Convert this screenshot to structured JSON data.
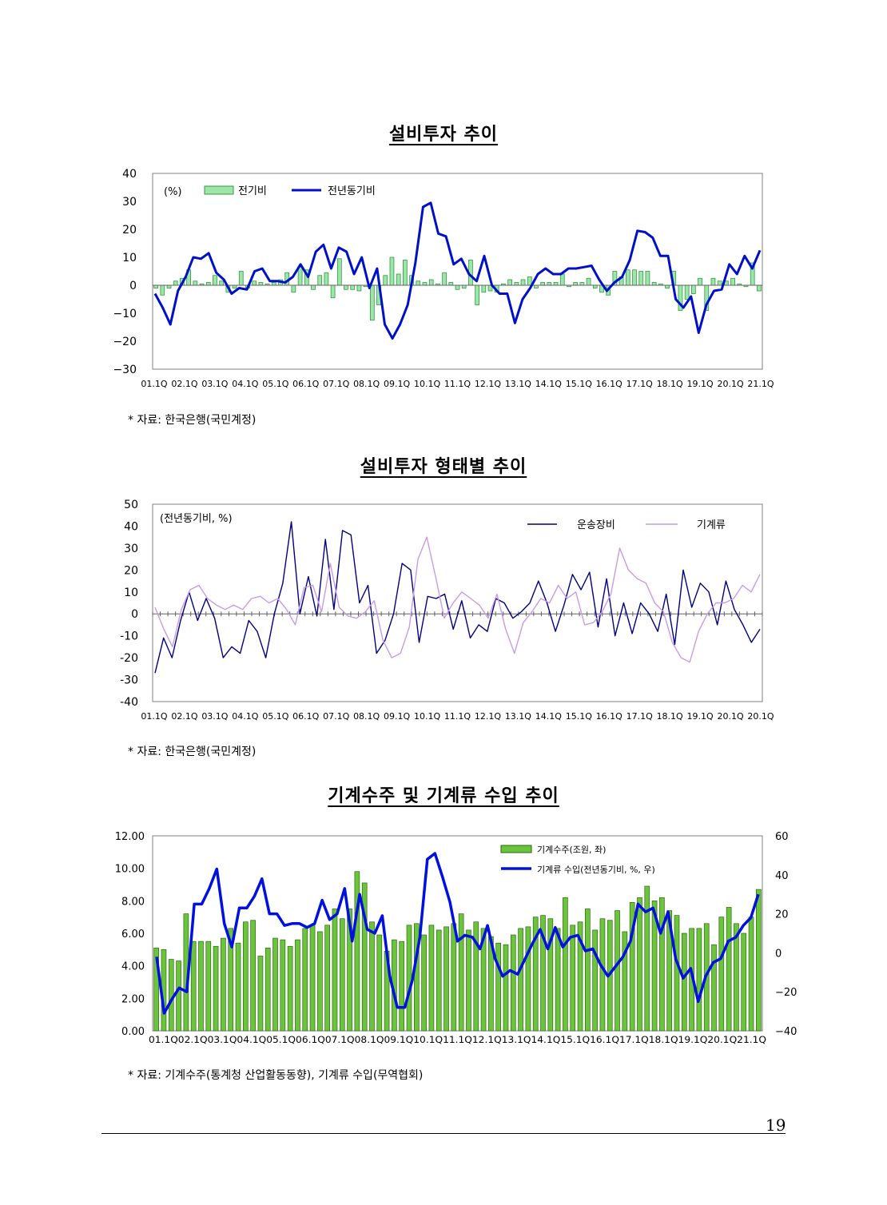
{
  "page_number": "19",
  "chart_data": [
    {
      "type": "bar+line",
      "title": "설비투자 추이",
      "unit_label": "(%)",
      "source": "* 자료: 한국은행(국민계정)",
      "ylim": [
        -30,
        40
      ],
      "yticks": [
        "40",
        "30",
        "20",
        "10",
        "0",
        "−10",
        "−20",
        "−30"
      ],
      "x_tick_labels": [
        "01.1Q",
        "02.1Q",
        "03.1Q",
        "04.1Q",
        "05.1Q",
        "06.1Q",
        "07.1Q",
        "08.1Q",
        "09.1Q",
        "10.1Q",
        "11.1Q",
        "12.1Q",
        "13.1Q",
        "14.1Q",
        "15.1Q",
        "16.1Q",
        "17.1Q",
        "18.1Q",
        "19.1Q",
        "20.1Q",
        "21.1Q"
      ],
      "grid": false,
      "legend": "top-left",
      "series": [
        {
          "name": "전기비",
          "kind": "bar",
          "color": "#9ee6a8",
          "stroke": "#2f9a45",
          "values": [
            -1,
            -3.5,
            -1,
            1.5,
            2.5,
            5.5,
            1.5,
            0.5,
            1,
            3.5,
            1.5,
            -2.5,
            -1,
            5,
            -1,
            1.5,
            1,
            0.5,
            1,
            2,
            4.5,
            -2.5,
            6.5,
            5.5,
            -1.5,
            3.5,
            4.5,
            -4.5,
            9.5,
            -1.5,
            -1.5,
            -2,
            -0.5,
            -12.5,
            -7,
            3.5,
            10,
            4,
            9,
            3.5,
            1.5,
            1,
            2,
            0.5,
            4.5,
            1,
            -1.5,
            -1,
            9,
            -7,
            -2.5,
            -2,
            -2.5,
            0.5,
            2,
            1,
            2,
            3,
            -1,
            1,
            1,
            1,
            4,
            -0.5,
            1,
            1,
            2.5,
            -1,
            -2.5,
            -3.5,
            5,
            3,
            5.5,
            5.5,
            5,
            5,
            1,
            0.5,
            -1,
            5,
            -9,
            -5,
            -3,
            2.5,
            -9,
            2.5,
            1.5,
            1.5,
            2.5,
            0.5,
            -0.5,
            8,
            -2
          ]
        },
        {
          "name": "전년동기비",
          "kind": "line",
          "color": "#0010c8",
          "values": [
            -3,
            -8,
            -14,
            -2,
            3,
            10,
            9.5,
            11.5,
            4.5,
            2,
            -3,
            -1,
            -1.5,
            5,
            6,
            1.5,
            1.5,
            1,
            3,
            7.5,
            3,
            12,
            14.5,
            6,
            13.5,
            12,
            4,
            10,
            -1,
            6,
            -14,
            -19,
            -14,
            -7,
            8,
            28,
            29.5,
            18.5,
            17.5,
            7.5,
            9.5,
            4,
            1.5,
            10.5,
            0,
            -3,
            -3,
            -13.5,
            -5,
            -1,
            4,
            6,
            4,
            4,
            6,
            6,
            6.5,
            7,
            2,
            -2,
            1,
            3,
            9,
            19.5,
            19,
            17,
            10.5,
            10.5,
            -5,
            -8,
            -4,
            -17,
            -7,
            -2,
            -1.5,
            7.5,
            4,
            10.5,
            6,
            12.5
          ]
        }
      ]
    },
    {
      "type": "line",
      "title": "설비투자 형태별 추이",
      "unit_label": "(전년동기비, %)",
      "source": "* 자료: 한국은행(국민계정)",
      "ylim": [
        -40,
        50
      ],
      "yticks": [
        "50",
        "40",
        "30",
        "20",
        "10",
        "0",
        "-10",
        "-20",
        "-30",
        "-40"
      ],
      "x_tick_labels": [
        "01.1Q",
        "02.1Q",
        "03.1Q",
        "04.1Q",
        "05.1Q",
        "06.1Q",
        "07.1Q",
        "08.1Q",
        "09.1Q",
        "10.1Q",
        "11.1Q",
        "12.1Q",
        "13.1Q",
        "14.1Q",
        "15.1Q",
        "16.1Q",
        "17.1Q",
        "18.1Q",
        "19.1Q",
        "20.1Q",
        "20.1Q"
      ],
      "grid": false,
      "legend": "top-right",
      "series": [
        {
          "name": "운송장비",
          "color": "#000080",
          "values": [
            -27,
            -11,
            -20,
            -3,
            10,
            -3,
            7,
            -2,
            -20,
            -15,
            -18,
            -3,
            -8,
            -20,
            0,
            14,
            42,
            0,
            17,
            -1,
            34,
            2,
            38,
            36,
            5,
            13,
            -18,
            -12,
            0,
            23,
            20,
            -13,
            8,
            7,
            9,
            -7,
            6,
            -11,
            -5,
            -8,
            7,
            5,
            -2,
            1,
            5,
            15,
            5,
            -8,
            4,
            18,
            11,
            19,
            -6,
            16,
            -10,
            5,
            -9,
            5,
            0,
            -8,
            9,
            -14,
            20,
            3,
            14,
            10,
            -5,
            15,
            2,
            -5,
            -13,
            -7
          ]
        },
        {
          "name": "기계류",
          "color": "#c89be6",
          "values": [
            3,
            -7,
            -15,
            2,
            11,
            13,
            7,
            4,
            2,
            4,
            2,
            7,
            8,
            5,
            7,
            2,
            -5,
            12,
            13,
            1,
            23,
            3,
            -1,
            -2,
            1,
            6,
            -12,
            -20,
            -18,
            -6,
            25,
            35,
            17,
            -2,
            5,
            10,
            7,
            4,
            -2,
            9,
            -7,
            -18,
            -4,
            1,
            7,
            5,
            13,
            7,
            10,
            -5,
            -4,
            1,
            9,
            30,
            20,
            16,
            14,
            5,
            1,
            -13,
            -20,
            -22,
            -8,
            0,
            5,
            5,
            7,
            13,
            10,
            18
          ]
        }
      ]
    },
    {
      "type": "bar+line",
      "title": "기계수주 및 기계류 수입 추이",
      "source": "* 자료: 기계수주(통계청 산업활동동향), 기계류 수입(무역협회)",
      "ylim_left": [
        0,
        12
      ],
      "ylim_right": [
        -40,
        60
      ],
      "yticks_left": [
        "12.00",
        "10.00",
        "8.00",
        "6.00",
        "4.00",
        "2.00",
        "0.00"
      ],
      "yticks_right": [
        "60",
        "40",
        "20",
        "0",
        "−20",
        "−40"
      ],
      "x_axis_label_text": "01.1Q02.1Q03.1Q04.1Q05.1Q06.1Q07.1Q08.1Q09.1Q10.1Q11.1Q12.1Q13.1Q14.1Q15.1Q16.1Q17.1Q18.1Q19.1Q20.1Q21.1Q",
      "grid": false,
      "legend": "top-right",
      "series": [
        {
          "name": "기계수주(조원, 좌)",
          "kind": "bar",
          "axis": "left",
          "color": "#6cc43c",
          "stroke": "#2a6a10",
          "values": [
            5.1,
            5,
            4.4,
            4.3,
            7.2,
            5.5,
            5.5,
            5.5,
            5.2,
            5.7,
            6.3,
            5.4,
            6.7,
            6.8,
            4.6,
            5.1,
            5.7,
            5.6,
            5.2,
            5.6,
            6.3,
            6.5,
            6.1,
            6.5,
            7.5,
            6.9,
            7.5,
            9.8,
            9.1,
            6.7,
            5.9,
            4.9,
            5.6,
            5.5,
            6.5,
            6.6,
            5.9,
            6.5,
            6.2,
            6.4,
            6.6,
            7.2,
            6.2,
            6.7,
            6.3,
            5.8,
            5.4,
            5.3,
            5.9,
            6.3,
            6.4,
            7,
            7.1,
            6.9,
            6.3,
            8.2,
            6.5,
            6.7,
            7.5,
            6.2,
            6.9,
            6.8,
            7.4,
            6.1,
            7.9,
            8.2,
            8.9,
            8,
            8.2,
            7.4,
            7.1,
            6,
            6.3,
            6.3,
            6.6,
            5.3,
            7,
            7.6,
            6.6,
            6,
            7,
            8.7
          ]
        },
        {
          "name": "기계류 수입(전년동기비, %, 우)",
          "kind": "line",
          "axis": "right",
          "color": "#0010e0",
          "values": [
            -2,
            -31,
            -24,
            -18,
            -20,
            25,
            25,
            33,
            43,
            15,
            3,
            23,
            23,
            29,
            38,
            20,
            20,
            14,
            15,
            15,
            13,
            15,
            27,
            17,
            20,
            33,
            6,
            30,
            12,
            10,
            19,
            -12,
            -28,
            -28,
            -14,
            8,
            48,
            51,
            39,
            26,
            6,
            9,
            8,
            2,
            14,
            -3,
            -12,
            -9,
            -11,
            -3,
            5,
            12,
            2,
            13,
            3,
            8,
            9,
            1,
            2,
            -6,
            -12,
            -7,
            -2,
            6,
            25,
            21,
            23,
            10,
            21,
            -3,
            -13,
            -8,
            -25,
            -12,
            -5,
            -3,
            6,
            8,
            14,
            18,
            30
          ]
        }
      ]
    }
  ],
  "colors": {
    "axis": "#808080",
    "zero_line": "#606060"
  }
}
